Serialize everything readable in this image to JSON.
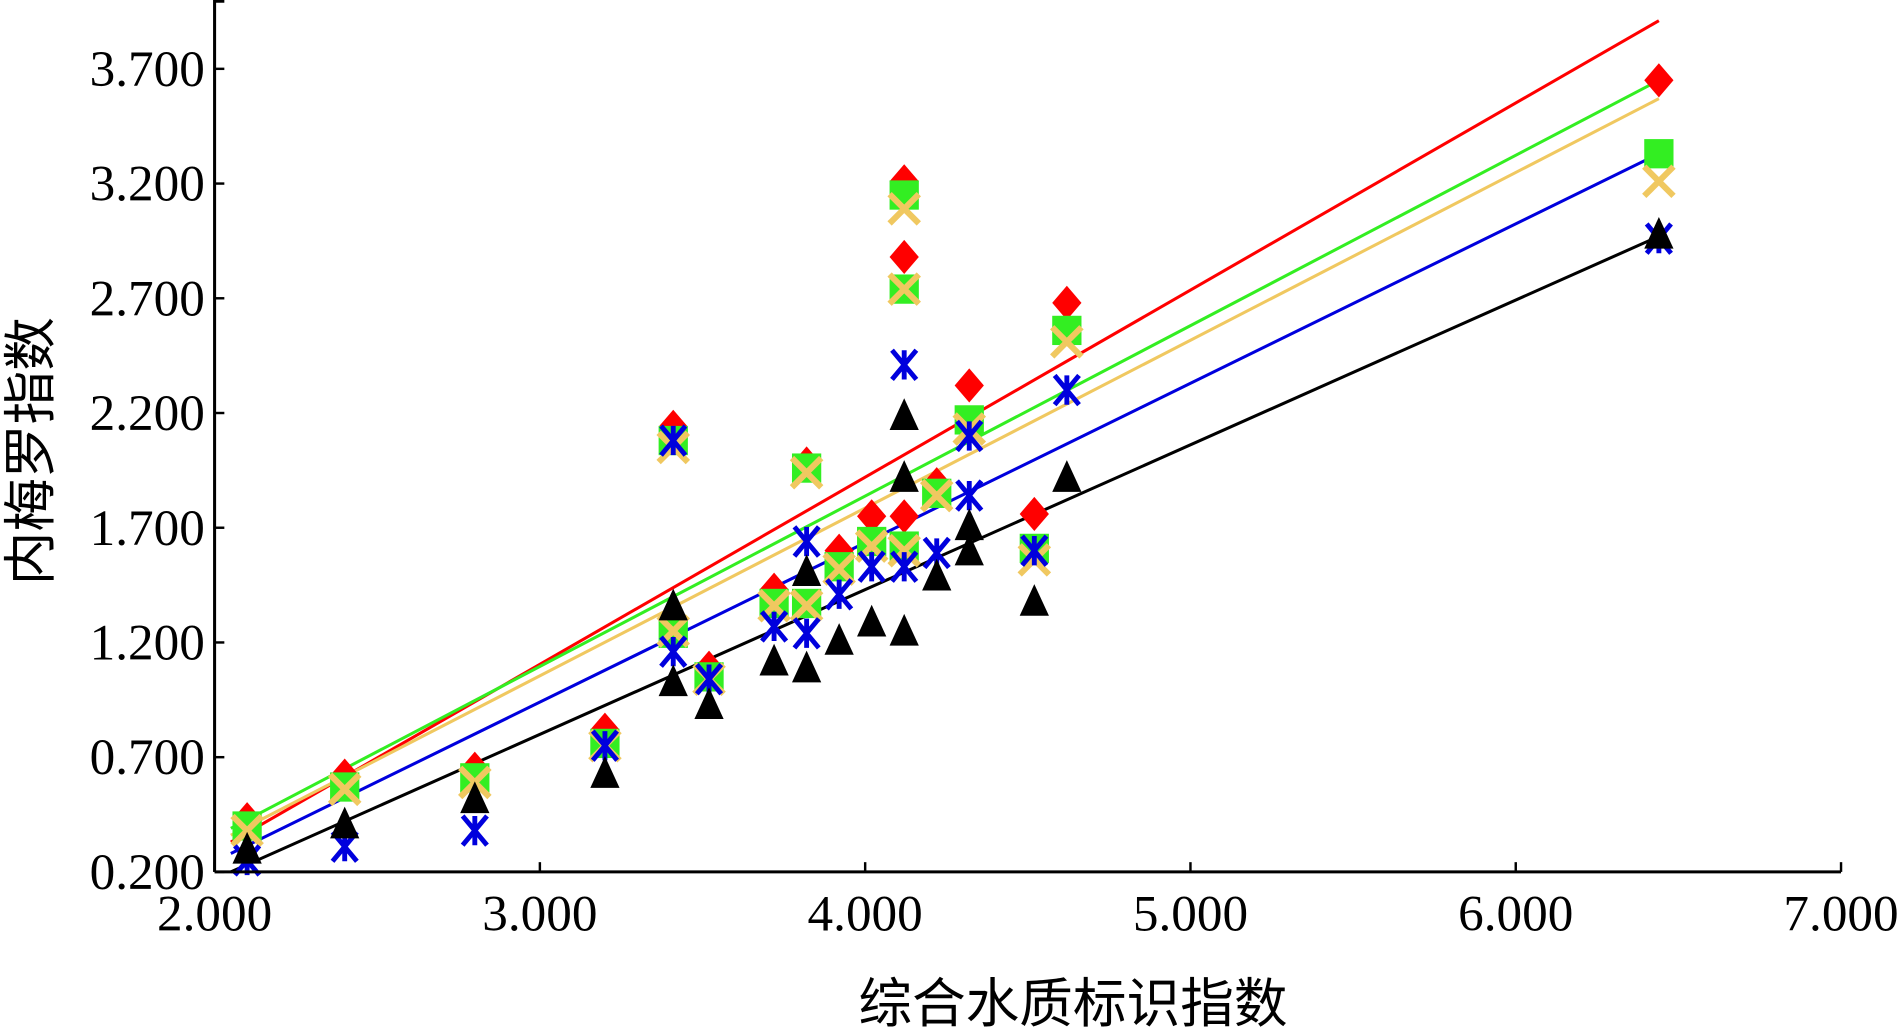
{
  "chart_data": {
    "type": "scatter",
    "title": "",
    "xlabel": "综合水质标识指数",
    "ylabel": "内梅罗指数",
    "xlim": [
      2.0,
      7.0
    ],
    "ylim": [
      0.2,
      4.0
    ],
    "xticks": [
      "2.000",
      "3.000",
      "4.000",
      "5.000",
      "6.000",
      "7.000"
    ],
    "xtick_values": [
      2,
      3,
      4,
      5,
      6,
      7
    ],
    "yticks": [
      "0.200",
      "0.700",
      "1.200",
      "1.700",
      "2.200",
      "2.700",
      "3.200",
      "3.700"
    ],
    "ytick_values": [
      0.2,
      0.7,
      1.2,
      1.7,
      2.2,
      2.7,
      3.2,
      3.7
    ],
    "grid": false,
    "series": [
      {
        "name": "red",
        "marker": "diamond",
        "color": "#ff0000",
        "points": [
          [
            2.1,
            0.43
          ],
          [
            2.4,
            0.62
          ],
          [
            2.8,
            0.65
          ],
          [
            3.2,
            0.82
          ],
          [
            3.41,
            2.14
          ],
          [
            3.52,
            1.09
          ],
          [
            3.72,
            1.43
          ],
          [
            3.82,
            1.98
          ],
          [
            3.92,
            1.6
          ],
          [
            4.02,
            1.75
          ],
          [
            4.12,
            3.21
          ],
          [
            4.12,
            2.88
          ],
          [
            4.12,
            1.75
          ],
          [
            4.22,
            1.89
          ],
          [
            4.32,
            2.32
          ],
          [
            4.52,
            1.76
          ],
          [
            4.62,
            2.68
          ],
          [
            6.44,
            3.65
          ]
        ],
        "fit": [
          [
            2.05,
            0.33
          ],
          [
            6.44,
            3.91
          ]
        ]
      },
      {
        "name": "green",
        "marker": "square",
        "color": "#33ee22",
        "points": [
          [
            2.1,
            0.4
          ],
          [
            2.4,
            0.57
          ],
          [
            2.8,
            0.61
          ],
          [
            3.2,
            0.76
          ],
          [
            3.41,
            2.08
          ],
          [
            3.41,
            1.24
          ],
          [
            3.52,
            1.05
          ],
          [
            3.72,
            1.37
          ],
          [
            3.82,
            1.96
          ],
          [
            3.82,
            1.37
          ],
          [
            3.92,
            1.53
          ],
          [
            4.02,
            1.64
          ],
          [
            4.12,
            3.15
          ],
          [
            4.12,
            2.74
          ],
          [
            4.12,
            1.62
          ],
          [
            4.22,
            1.85
          ],
          [
            4.32,
            2.17
          ],
          [
            4.52,
            1.61
          ],
          [
            4.62,
            2.56
          ],
          [
            6.44,
            3.33
          ]
        ],
        "fit": [
          [
            2.05,
            0.39
          ],
          [
            6.44,
            3.65
          ]
        ]
      },
      {
        "name": "tan",
        "marker": "x",
        "color": "#f0c860",
        "points": [
          [
            2.1,
            0.38
          ],
          [
            2.4,
            0.56
          ],
          [
            2.8,
            0.59
          ],
          [
            3.2,
            0.75
          ],
          [
            3.41,
            2.05
          ],
          [
            3.41,
            1.25
          ],
          [
            3.52,
            1.04
          ],
          [
            3.72,
            1.36
          ],
          [
            3.82,
            1.94
          ],
          [
            3.82,
            1.36
          ],
          [
            3.92,
            1.52
          ],
          [
            4.02,
            1.62
          ],
          [
            4.12,
            3.09
          ],
          [
            4.12,
            2.74
          ],
          [
            4.12,
            1.6
          ],
          [
            4.22,
            1.84
          ],
          [
            4.32,
            2.13
          ],
          [
            4.52,
            1.56
          ],
          [
            4.62,
            2.51
          ],
          [
            6.44,
            3.21
          ]
        ],
        "fit": [
          [
            2.05,
            0.36
          ],
          [
            6.44,
            3.57
          ]
        ]
      },
      {
        "name": "blue",
        "marker": "asterisk",
        "color": "#0000dd",
        "points": [
          [
            2.1,
            0.25
          ],
          [
            2.4,
            0.31
          ],
          [
            2.8,
            0.38
          ],
          [
            3.2,
            0.75
          ],
          [
            3.41,
            2.08
          ],
          [
            3.41,
            1.16
          ],
          [
            3.52,
            1.04
          ],
          [
            3.72,
            1.27
          ],
          [
            3.82,
            1.64
          ],
          [
            3.82,
            1.24
          ],
          [
            3.92,
            1.41
          ],
          [
            4.02,
            1.53
          ],
          [
            4.12,
            2.41
          ],
          [
            4.12,
            1.53
          ],
          [
            4.22,
            1.59
          ],
          [
            4.32,
            2.1
          ],
          [
            4.32,
            1.84
          ],
          [
            4.52,
            1.6
          ],
          [
            4.62,
            2.3
          ],
          [
            6.44,
            2.96
          ]
        ],
        "fit": [
          [
            2.05,
            0.28
          ],
          [
            6.44,
            3.33
          ]
        ]
      },
      {
        "name": "black",
        "marker": "triangle",
        "color": "#000000",
        "points": [
          [
            2.1,
            0.3
          ],
          [
            2.4,
            0.41
          ],
          [
            2.8,
            0.52
          ],
          [
            3.2,
            0.63
          ],
          [
            3.41,
            1.36
          ],
          [
            3.41,
            1.03
          ],
          [
            3.52,
            0.93
          ],
          [
            3.72,
            1.12
          ],
          [
            3.82,
            1.51
          ],
          [
            3.82,
            1.09
          ],
          [
            3.92,
            1.21
          ],
          [
            4.02,
            1.29
          ],
          [
            4.12,
            2.19
          ],
          [
            4.12,
            1.92
          ],
          [
            4.12,
            1.25
          ],
          [
            4.22,
            1.49
          ],
          [
            4.32,
            1.71
          ],
          [
            4.32,
            1.6
          ],
          [
            4.52,
            1.38
          ],
          [
            4.62,
            1.92
          ],
          [
            6.44,
            2.98
          ]
        ],
        "fit": [
          [
            2.05,
            0.2
          ],
          [
            6.44,
            2.97
          ]
        ]
      }
    ]
  }
}
